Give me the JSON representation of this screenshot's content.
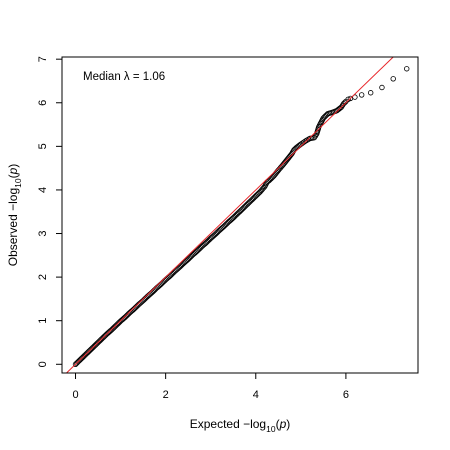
{
  "chart_data": {
    "type": "scatter",
    "title": "",
    "annotation": "Median λ = 1.06",
    "xlabel": {
      "prefix": "Expected  −log",
      "sub": "10",
      "suffix_open": "(",
      "var": "p",
      "suffix_close": ")"
    },
    "ylabel": {
      "prefix": "Observed  −log",
      "sub": "10",
      "suffix_open": "(",
      "var": "p",
      "suffix_close": ")"
    },
    "xlim": [
      -0.3,
      7.6
    ],
    "ylim": [
      -0.2,
      7.05
    ],
    "xticks": [
      0,
      2,
      4,
      6
    ],
    "yticks": [
      0,
      1,
      2,
      3,
      4,
      5,
      6,
      7
    ],
    "xtick_labels": [
      "0",
      "2",
      "4",
      "6"
    ],
    "ytick_labels": [
      "0",
      "1",
      "2",
      "3",
      "4",
      "5",
      "6",
      "7"
    ],
    "reference_line": {
      "slope": 1,
      "intercept": 0,
      "color": "#e8262a"
    },
    "point_color": "#000000",
    "grid": false,
    "points": [
      [
        0.0,
        0.0
      ],
      [
        0.05,
        0.05
      ],
      [
        0.1,
        0.1
      ],
      [
        0.15,
        0.15
      ],
      [
        0.2,
        0.2
      ],
      [
        0.3,
        0.3
      ],
      [
        0.4,
        0.4
      ],
      [
        0.5,
        0.5
      ],
      [
        0.6,
        0.6
      ],
      [
        0.7,
        0.7
      ],
      [
        0.8,
        0.79
      ],
      [
        0.9,
        0.89
      ],
      [
        1.0,
        0.99
      ],
      [
        1.1,
        1.08
      ],
      [
        1.2,
        1.18
      ],
      [
        1.3,
        1.27
      ],
      [
        1.4,
        1.37
      ],
      [
        1.5,
        1.46
      ],
      [
        1.6,
        1.56
      ],
      [
        1.7,
        1.65
      ],
      [
        1.8,
        1.75
      ],
      [
        1.9,
        1.84
      ],
      [
        2.0,
        1.94
      ],
      [
        2.1,
        2.03
      ],
      [
        2.2,
        2.13
      ],
      [
        2.3,
        2.22
      ],
      [
        2.4,
        2.32
      ],
      [
        2.5,
        2.41
      ],
      [
        2.6,
        2.51
      ],
      [
        2.7,
        2.6
      ],
      [
        2.8,
        2.7
      ],
      [
        2.9,
        2.79
      ],
      [
        3.0,
        2.89
      ],
      [
        3.1,
        2.98
      ],
      [
        3.2,
        3.08
      ],
      [
        3.3,
        3.17
      ],
      [
        3.4,
        3.27
      ],
      [
        3.5,
        3.36
      ],
      [
        3.6,
        3.46
      ],
      [
        3.7,
        3.56
      ],
      [
        3.8,
        3.66
      ],
      [
        3.9,
        3.76
      ],
      [
        4.0,
        3.86
      ],
      [
        4.1,
        3.96
      ],
      [
        4.2,
        4.08
      ],
      [
        4.25,
        4.18
      ],
      [
        4.3,
        4.22
      ],
      [
        4.4,
        4.32
      ],
      [
        4.5,
        4.45
      ],
      [
        4.6,
        4.57
      ],
      [
        4.7,
        4.7
      ],
      [
        4.8,
        4.83
      ],
      [
        4.85,
        4.92
      ],
      [
        4.9,
        4.97
      ],
      [
        5.0,
        5.05
      ],
      [
        5.1,
        5.12
      ],
      [
        5.2,
        5.18
      ],
      [
        5.3,
        5.2
      ],
      [
        5.35,
        5.28
      ],
      [
        5.4,
        5.45
      ],
      [
        5.45,
        5.55
      ],
      [
        5.5,
        5.65
      ],
      [
        5.55,
        5.7
      ],
      [
        5.6,
        5.75
      ],
      [
        5.7,
        5.78
      ],
      [
        5.8,
        5.82
      ],
      [
        5.9,
        5.9
      ],
      [
        5.95,
        5.98
      ],
      [
        6.0,
        6.03
      ],
      [
        6.05,
        6.08
      ],
      [
        6.1,
        6.1
      ],
      [
        6.2,
        6.13
      ],
      [
        6.35,
        6.18
      ],
      [
        6.55,
        6.23
      ],
      [
        6.8,
        6.35
      ],
      [
        7.05,
        6.55
      ],
      [
        7.35,
        6.78
      ]
    ]
  }
}
